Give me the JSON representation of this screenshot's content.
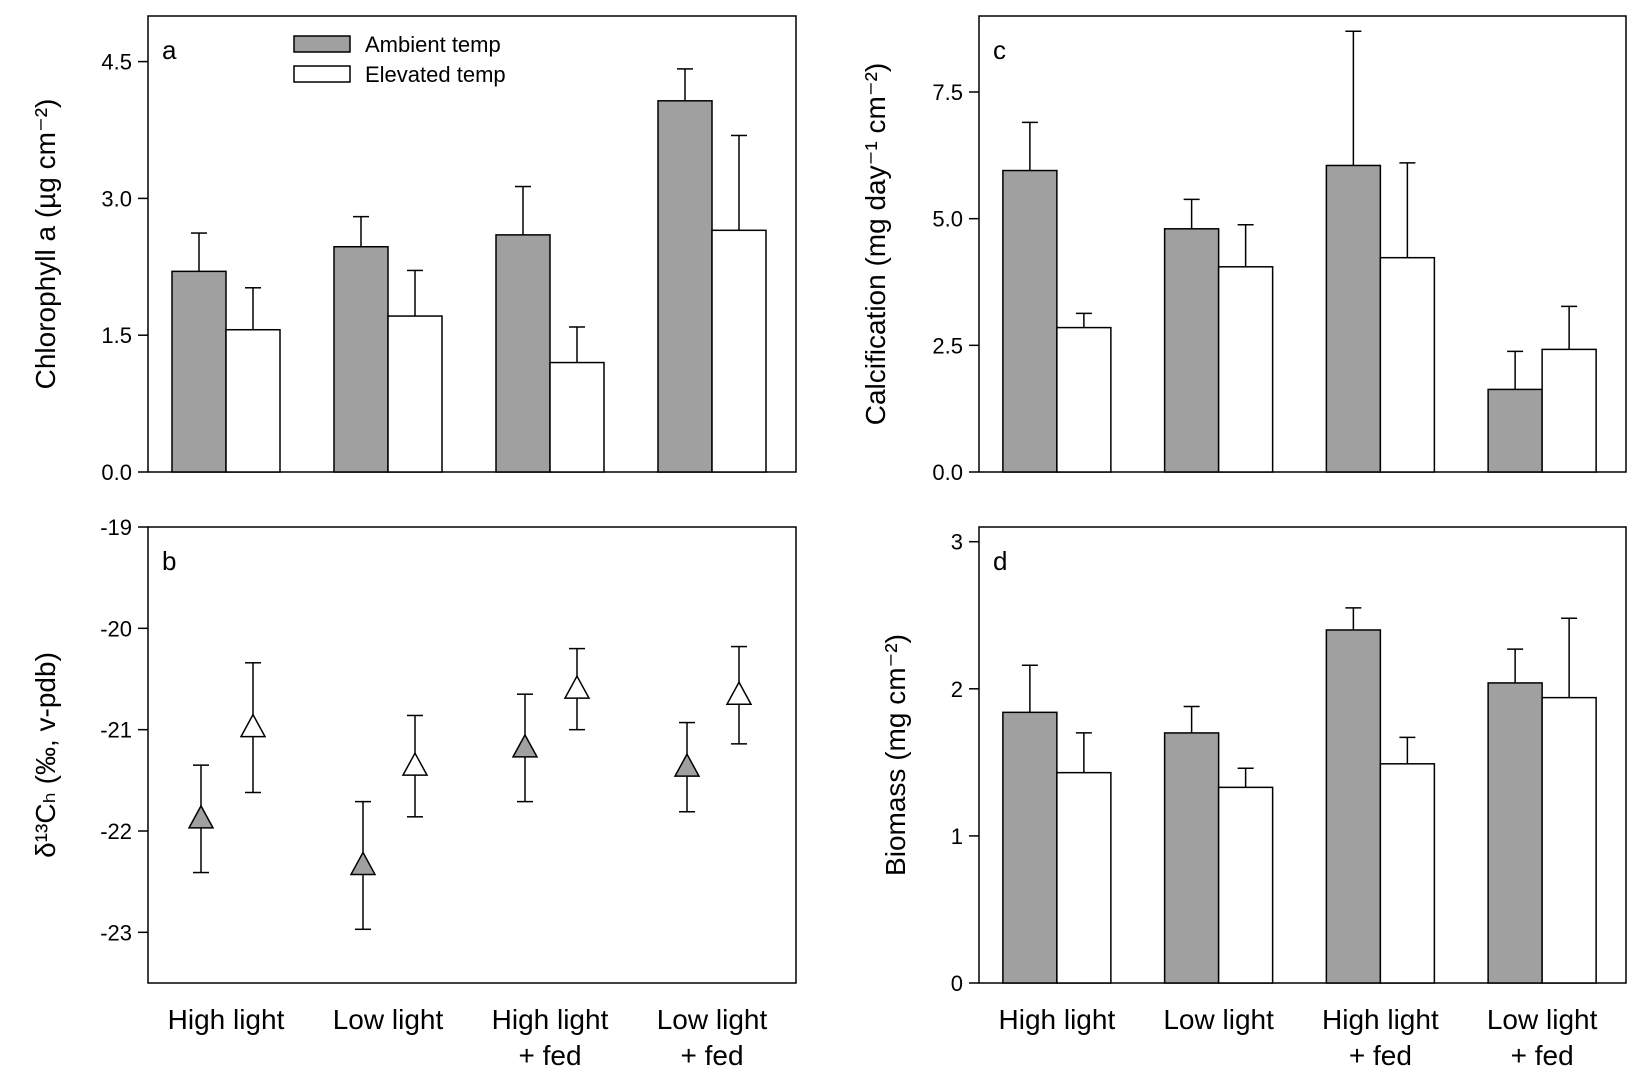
{
  "colors": {
    "ambient": "#a0a0a0",
    "elevated": "#ffffff",
    "stroke": "#000000"
  },
  "categories": [
    [
      "High light"
    ],
    [
      "Low light"
    ],
    [
      "High light",
      "+ fed"
    ],
    [
      "Low light",
      "+ fed"
    ]
  ],
  "legend": {
    "ambient": "Ambient temp",
    "elevated": "Elevated temp"
  },
  "chart_data": [
    {
      "panel": "a",
      "type": "bar",
      "ylabel": "Chlorophyll a (µg cm⁻²)",
      "ylim": [
        0,
        5
      ],
      "yticks": [
        0.0,
        1.5,
        3.0,
        4.5
      ],
      "tick_decimals": 1,
      "series": [
        {
          "name": "Ambient temp",
          "values": [
            2.2,
            2.47,
            2.6,
            4.07
          ],
          "errors": [
            0.42,
            0.33,
            0.53,
            0.35
          ]
        },
        {
          "name": "Elevated temp",
          "values": [
            1.56,
            1.71,
            1.2,
            2.65
          ],
          "errors": [
            0.46,
            0.5,
            0.39,
            1.04
          ]
        }
      ]
    },
    {
      "panel": "c",
      "type": "bar",
      "ylabel": "Calcification (mg day⁻¹ cm⁻²)",
      "ylim": [
        0,
        9
      ],
      "yticks": [
        0.0,
        2.5,
        5.0,
        7.5
      ],
      "tick_decimals": 1,
      "series": [
        {
          "name": "Ambient temp",
          "values": [
            5.95,
            4.8,
            6.05,
            1.63
          ],
          "errors": [
            0.95,
            0.58,
            2.65,
            0.75
          ]
        },
        {
          "name": "Elevated temp",
          "values": [
            2.85,
            4.05,
            4.23,
            2.42
          ],
          "errors": [
            0.28,
            0.83,
            1.87,
            0.85
          ]
        }
      ]
    },
    {
      "panel": "b",
      "type": "scatter",
      "ylabel": "δ¹³Cₕ (‰, v-pdb)",
      "ylim": [
        -23.5,
        -19
      ],
      "yticks": [
        -19,
        -20,
        -21,
        -22,
        -23
      ],
      "tick_decimals": 0,
      "series": [
        {
          "name": "Ambient temp",
          "values": [
            -21.88,
            -22.34,
            -21.18,
            -21.37
          ],
          "errors": [
            0.53,
            0.63,
            0.53,
            0.44
          ]
        },
        {
          "name": "Elevated temp",
          "values": [
            -20.98,
            -21.36,
            -20.6,
            -20.66
          ],
          "errors": [
            0.64,
            0.5,
            0.4,
            0.48
          ]
        }
      ]
    },
    {
      "panel": "d",
      "type": "bar",
      "ylabel": "Biomass (mg cm⁻²)",
      "ylim": [
        0,
        3.1
      ],
      "yticks": [
        0,
        1,
        2,
        3
      ],
      "tick_decimals": 0,
      "series": [
        {
          "name": "Ambient temp",
          "values": [
            1.84,
            1.7,
            2.4,
            2.04
          ],
          "errors": [
            0.32,
            0.18,
            0.15,
            0.23
          ]
        },
        {
          "name": "Elevated temp",
          "values": [
            1.43,
            1.33,
            1.49,
            1.94
          ],
          "errors": [
            0.27,
            0.13,
            0.18,
            0.54
          ]
        }
      ]
    }
  ]
}
